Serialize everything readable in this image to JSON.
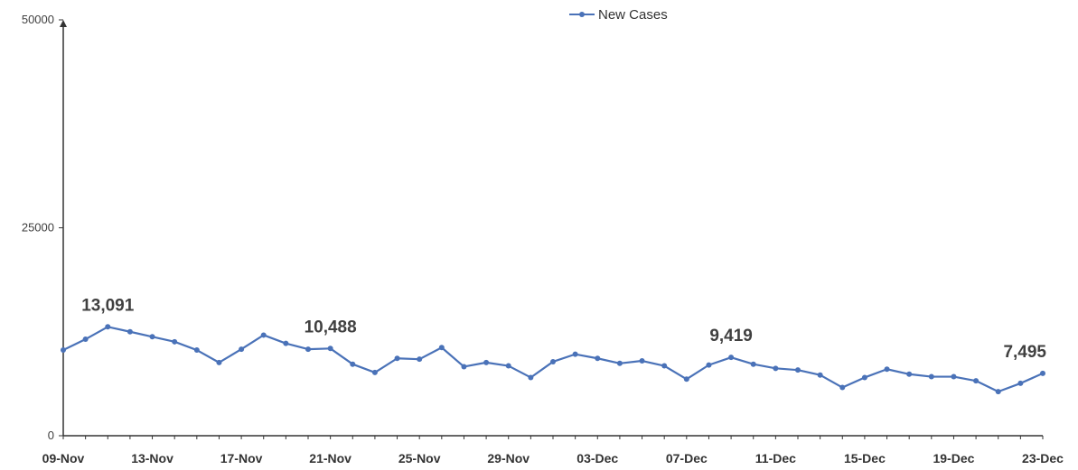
{
  "chart_data": {
    "type": "line",
    "title": "",
    "xlabel": "",
    "ylabel": "",
    "ylim": [
      0,
      50000
    ],
    "y_ticks": [
      "0",
      "25000",
      "50000"
    ],
    "x_tick_labels": [
      "09-Nov",
      "13-Nov",
      "17-Nov",
      "21-Nov",
      "25-Nov",
      "29-Nov",
      "03-Dec",
      "07-Dec",
      "11-Dec",
      "15-Dec",
      "19-Dec",
      "23-Dec"
    ],
    "grid": false,
    "legend_position": "top-center",
    "series": [
      {
        "name": "New Cases",
        "color": "#4a72b8",
        "x": [
          "09-Nov",
          "10-Nov",
          "11-Nov",
          "12-Nov",
          "13-Nov",
          "14-Nov",
          "15-Nov",
          "16-Nov",
          "17-Nov",
          "18-Nov",
          "19-Nov",
          "20-Nov",
          "21-Nov",
          "22-Nov",
          "23-Nov",
          "24-Nov",
          "25-Nov",
          "26-Nov",
          "27-Nov",
          "28-Nov",
          "29-Nov",
          "30-Nov",
          "01-Dec",
          "02-Dec",
          "03-Dec",
          "04-Dec",
          "05-Dec",
          "06-Dec",
          "07-Dec",
          "08-Dec",
          "09-Dec",
          "10-Dec",
          "11-Dec",
          "12-Dec",
          "13-Dec",
          "14-Dec",
          "15-Dec",
          "16-Dec",
          "17-Dec",
          "18-Dec",
          "19-Dec",
          "20-Dec",
          "21-Dec",
          "22-Dec",
          "23-Dec"
        ],
        "values": [
          10300,
          11600,
          13091,
          12500,
          11900,
          11300,
          10300,
          8800,
          10400,
          12100,
          11100,
          10400,
          10488,
          8600,
          7600,
          9300,
          9200,
          10600,
          8300,
          8800,
          8400,
          7000,
          8900,
          9800,
          9300,
          8700,
          9000,
          8400,
          6800,
          8500,
          9419,
          8600,
          8100,
          7900,
          7300,
          5800,
          7000,
          8000,
          7400,
          7100,
          7100,
          6600,
          5300,
          6300,
          7495
        ]
      }
    ],
    "annotations": [
      {
        "x": "11-Nov",
        "text": "13,091"
      },
      {
        "x": "21-Nov",
        "text": "10,488"
      },
      {
        "x": "09-Dec",
        "text": "9,419"
      },
      {
        "x": "23-Dec",
        "text": "7,495"
      }
    ]
  }
}
